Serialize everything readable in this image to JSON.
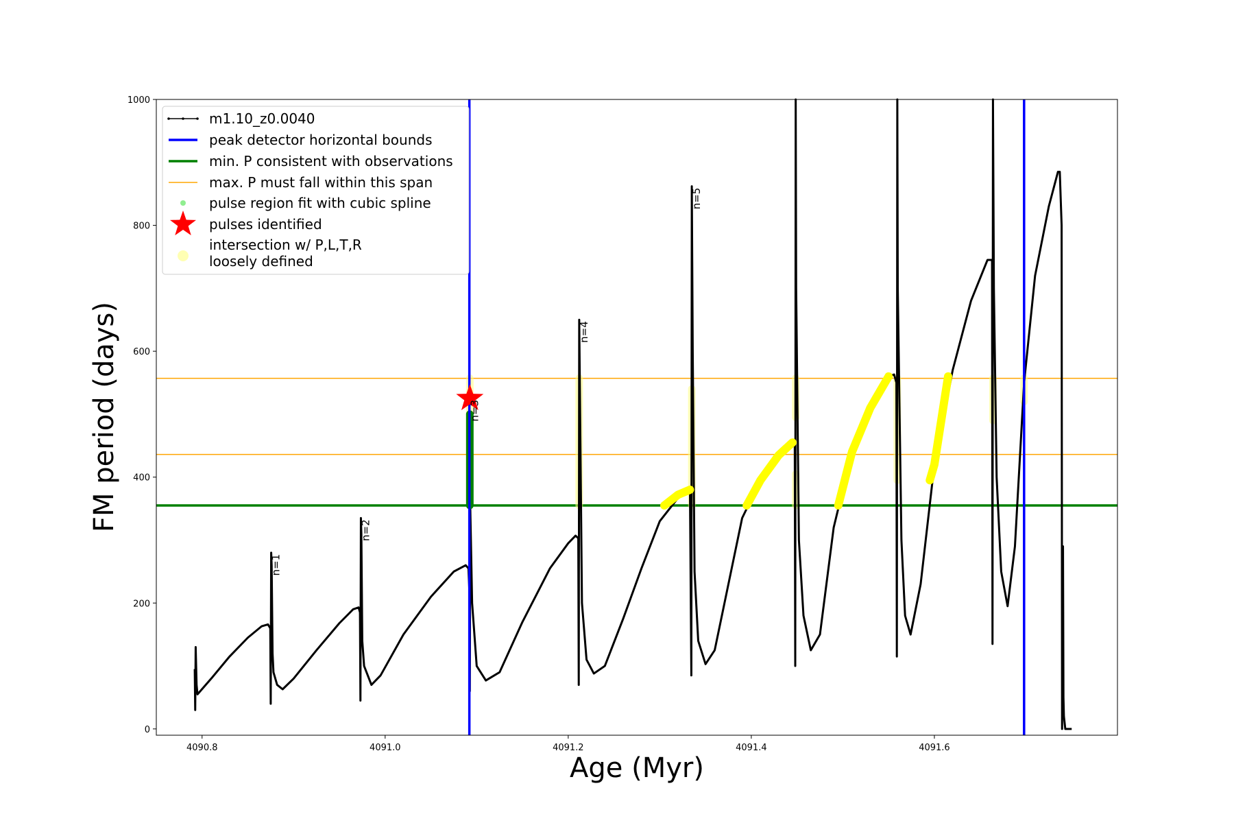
{
  "chart_data": {
    "type": "line",
    "title": "",
    "xlabel": "Age (Myr)",
    "ylabel": "FM period (days)",
    "xlim": [
      4090.75,
      4091.8
    ],
    "ylim": [
      -10,
      1000
    ],
    "x_ticks": [
      4090.8,
      4091.0,
      4091.2,
      4091.4,
      4091.6
    ],
    "x_tick_labels": [
      "4090.8",
      "4091.0",
      "4091.2",
      "4091.4",
      "4091.6"
    ],
    "y_ticks": [
      0,
      200,
      400,
      600,
      800,
      1000
    ],
    "y_tick_labels": [
      "0",
      "200",
      "400",
      "600",
      "800",
      "1000"
    ],
    "grid": false,
    "legend_position": "top-left",
    "legend": [
      {
        "label": "m1.10_z0.0040",
        "style": "line-marker",
        "color": "#000000"
      },
      {
        "label": "peak detector horizontal bounds",
        "style": "line",
        "color": "#0000ff"
      },
      {
        "label": "min. P consistent with observations",
        "style": "line",
        "color": "#008000"
      },
      {
        "label": "max. P must fall within this span",
        "style": "thin-line",
        "color": "#ffa500"
      },
      {
        "label": "pulse region fit with cubic spline",
        "style": "dot",
        "color": "#90ee90"
      },
      {
        "label": "pulses identified",
        "style": "star",
        "color": "#ff0000"
      },
      {
        "label": "intersection w/ P,L,T,R",
        "label2": "loosely defined",
        "style": "big-dot",
        "color": "#ffffa0"
      }
    ],
    "vertical_lines": [
      {
        "x": 4091.092,
        "color": "#0000ff"
      },
      {
        "x": 4091.698,
        "color": "#0000ff"
      }
    ],
    "horizontal_lines": [
      {
        "y": 355,
        "color": "#008000",
        "kind": "min_P"
      },
      {
        "y": 436,
        "color": "#ffa500",
        "kind": "span_low"
      },
      {
        "y": 557,
        "color": "#ffa500",
        "kind": "span_high"
      }
    ],
    "series": [
      {
        "name": "m1.10_z0.0040",
        "color": "#000000",
        "points": [
          [
            4090.792,
            95
          ],
          [
            4090.7925,
            30
          ],
          [
            4090.793,
            130
          ],
          [
            4090.794,
            70
          ],
          [
            4090.795,
            55
          ],
          [
            4090.81,
            80
          ],
          [
            4090.83,
            115
          ],
          [
            4090.85,
            145
          ],
          [
            4090.865,
            163
          ],
          [
            4090.872,
            166
          ],
          [
            4090.8745,
            160
          ],
          [
            4090.875,
            40
          ],
          [
            4090.8755,
            280
          ],
          [
            4090.876,
            260
          ],
          [
            4090.877,
            120
          ],
          [
            4090.878,
            90
          ],
          [
            4090.882,
            70
          ],
          [
            4090.888,
            63
          ],
          [
            4090.9,
            80
          ],
          [
            4090.925,
            125
          ],
          [
            4090.95,
            168
          ],
          [
            4090.965,
            190
          ],
          [
            4090.971,
            193
          ],
          [
            4090.9725,
            185
          ],
          [
            4090.973,
            45
          ],
          [
            4090.9735,
            335
          ],
          [
            4090.974,
            310
          ],
          [
            4090.975,
            140
          ],
          [
            4090.977,
            100
          ],
          [
            4090.985,
            70
          ],
          [
            4090.995,
            85
          ],
          [
            4091.02,
            150
          ],
          [
            4091.05,
            210
          ],
          [
            4091.075,
            250
          ],
          [
            4091.088,
            260
          ],
          [
            4091.091,
            255
          ],
          [
            4091.092,
            220
          ],
          [
            4091.0925,
            60
          ],
          [
            4091.093,
            350
          ],
          [
            4091.095,
            200
          ],
          [
            4091.1,
            100
          ],
          [
            4091.11,
            77
          ],
          [
            4091.125,
            90
          ],
          [
            4091.15,
            170
          ],
          [
            4091.18,
            255
          ],
          [
            4091.2,
            295
          ],
          [
            4091.208,
            307
          ],
          [
            4091.211,
            303
          ],
          [
            4091.2115,
            70
          ],
          [
            4091.212,
            650
          ],
          [
            4091.213,
            500
          ],
          [
            4091.215,
            200
          ],
          [
            4091.22,
            110
          ],
          [
            4091.228,
            88
          ],
          [
            4091.24,
            100
          ],
          [
            4091.26,
            175
          ],
          [
            4091.28,
            255
          ],
          [
            4091.3,
            330
          ],
          [
            4091.32,
            367
          ],
          [
            4091.333,
            380
          ],
          [
            4091.3345,
            85
          ],
          [
            4091.335,
            862
          ],
          [
            4091.336,
            600
          ],
          [
            4091.338,
            250
          ],
          [
            4091.342,
            140
          ],
          [
            4091.35,
            103
          ],
          [
            4091.36,
            125
          ],
          [
            4091.375,
            230
          ],
          [
            4091.39,
            335
          ],
          [
            4091.41,
            395
          ],
          [
            4091.43,
            435
          ],
          [
            4091.445,
            455
          ],
          [
            4091.4475,
            450
          ],
          [
            4091.448,
            100
          ],
          [
            4091.4485,
            1000
          ],
          [
            4091.449,
            700
          ],
          [
            4091.452,
            300
          ],
          [
            4091.457,
            180
          ],
          [
            4091.465,
            125
          ],
          [
            4091.475,
            150
          ],
          [
            4091.49,
            320
          ],
          [
            4091.51,
            440
          ],
          [
            4091.53,
            510
          ],
          [
            4091.55,
            560
          ],
          [
            4091.556,
            563
          ],
          [
            4091.5585,
            550
          ],
          [
            4091.559,
            115
          ],
          [
            4091.5595,
            1000
          ],
          [
            4091.56,
            700
          ],
          [
            4091.564,
            300
          ],
          [
            4091.568,
            180
          ],
          [
            4091.574,
            150
          ],
          [
            4091.585,
            230
          ],
          [
            4091.6,
            420
          ],
          [
            4091.62,
            570
          ],
          [
            4091.64,
            680
          ],
          [
            4091.658,
            745
          ],
          [
            4091.663,
            745
          ],
          [
            4091.6635,
            135
          ],
          [
            4091.664,
            1000
          ],
          [
            4091.665,
            700
          ],
          [
            4091.668,
            400
          ],
          [
            4091.673,
            250
          ],
          [
            4091.68,
            195
          ],
          [
            4091.688,
            290
          ],
          [
            4091.698,
            550
          ],
          [
            4091.71,
            720
          ],
          [
            4091.725,
            830
          ],
          [
            4091.735,
            885
          ],
          [
            4091.737,
            885
          ],
          [
            4091.739,
            800
          ],
          [
            4091.7395,
            0
          ],
          [
            4091.7405,
            290
          ],
          [
            4091.741,
            50
          ],
          [
            4091.7415,
            20
          ],
          [
            4091.743,
            0
          ],
          [
            4091.75,
            0
          ]
        ]
      },
      {
        "name": "pulse region fit with cubic spline",
        "color": "#008000",
        "points": [
          [
            4091.0925,
            355
          ],
          [
            4091.0925,
            500
          ]
        ]
      },
      {
        "name": "intersection w/ P,L,T,R",
        "color": "#ffff00",
        "points": [
          [
            4091.305,
            355
          ],
          [
            4091.32,
            372
          ],
          [
            4091.333,
            380
          ],
          [
            4091.395,
            355
          ],
          [
            4091.41,
            395
          ],
          [
            4091.43,
            435
          ],
          [
            4091.445,
            455
          ],
          [
            4091.495,
            355
          ],
          [
            4091.51,
            440
          ],
          [
            4091.53,
            510
          ],
          [
            4091.55,
            560
          ],
          [
            4091.595,
            395
          ],
          [
            4091.6,
            420
          ],
          [
            4091.615,
            560
          ]
        ]
      }
    ],
    "loose_segments": [
      {
        "x": 4091.0925,
        "y0": 500,
        "y1": 557
      },
      {
        "x": 4091.212,
        "y0": 355,
        "y1": 557
      },
      {
        "x": 4091.335,
        "y0": 355,
        "y1": 540
      },
      {
        "x": 4091.4485,
        "y0": 355,
        "y1": 405
      },
      {
        "x": 4091.4485,
        "y0": 495,
        "y1": 557
      },
      {
        "x": 4091.5595,
        "y0": 395,
        "y1": 557
      },
      {
        "x": 4091.664,
        "y0": 490,
        "y1": 557
      },
      {
        "x": 4091.698,
        "y0": 520,
        "y1": 557
      }
    ],
    "pulses_identified": [
      {
        "x": 4091.0925,
        "y": 525
      }
    ],
    "annotations": [
      {
        "text": "n=1",
        "x": 4090.8755,
        "y": 280
      },
      {
        "text": "n=2",
        "x": 4090.9735,
        "y": 335
      },
      {
        "text": "n=3",
        "x": 4091.0925,
        "y": 525
      },
      {
        "text": "n=4",
        "x": 4091.212,
        "y": 650
      },
      {
        "text": "n=5",
        "x": 4091.335,
        "y": 862
      }
    ]
  }
}
